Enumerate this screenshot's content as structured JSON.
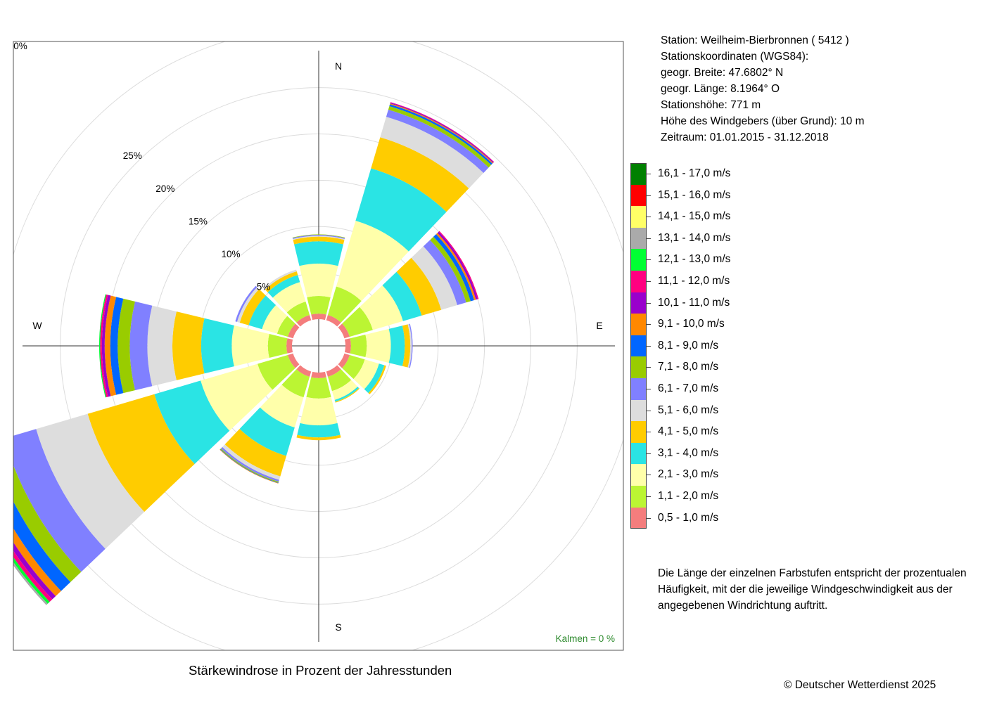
{
  "info": {
    "station": "Station:  Weilheim-Bierbronnen  ( 5412 )",
    "coords": "Stationskoordinaten (WGS84):",
    "lat": "geogr. Breite: 47.6802° N",
    "lon": "geogr. Länge:   8.1964° O",
    "height": "Stationshöhe: 771 m",
    "sensor": "Höhe des Windgebers (über Grund): 10 m",
    "period": "Zeitraum: 01.01.2015 - 31.12.2018"
  },
  "legend": [
    {
      "label": "16,1 - 17,0 m/s",
      "color": "#008000"
    },
    {
      "label": "15,1 - 16,0 m/s",
      "color": "#ff0000"
    },
    {
      "label": "14,1 - 15,0 m/s",
      "color": "#ffff66"
    },
    {
      "label": "13,1 - 14,0 m/s",
      "color": "#aaaaaa"
    },
    {
      "label": "12,1 - 13,0 m/s",
      "color": "#00ff33"
    },
    {
      "label": "11,1 - 12,0 m/s",
      "color": "#ff0080"
    },
    {
      "label": "10,1 - 11,0 m/s",
      "color": "#9900cc"
    },
    {
      "label": "9,1 - 10,0 m/s",
      "color": "#ff8800"
    },
    {
      "label": "8,1 - 9,0 m/s",
      "color": "#0066ff"
    },
    {
      "label": "7,1 - 8,0 m/s",
      "color": "#99cc00"
    },
    {
      "label": "6,1 - 7,0 m/s",
      "color": "#8080ff"
    },
    {
      "label": "5,1 - 6,0 m/s",
      "color": "#dddddd"
    },
    {
      "label": "4,1 - 5,0 m/s",
      "color": "#ffcc00"
    },
    {
      "label": "3,1 - 4,0 m/s",
      "color": "#2ae4e4"
    },
    {
      "label": "2,1 - 3,0 m/s",
      "color": "#ffffaa"
    },
    {
      "label": "1,1 - 2,0 m/s",
      "color": "#bbf533"
    },
    {
      "label": "0,5 - 1,0 m/s",
      "color": "#f47d7d"
    }
  ],
  "note": "Die Länge der einzelnen Farbstufen entspricht der prozentualen Häufigkeit, mit der die jeweilige Windgeschwindigkeit aus der angegebenen Windrichtung auftritt.",
  "title": "Stärkewindrose in Prozent der Jahresstunden",
  "copyright": "© Deutscher Wetterdienst  2025",
  "chart_data": {
    "type": "windrose",
    "unit": "%",
    "ring_labels": [
      "0%",
      "5%",
      "10%",
      "15%",
      "20%",
      "25%"
    ],
    "ring_values": [
      5,
      10,
      15,
      20,
      25
    ],
    "rmax": 31.5,
    "directions": [
      "N",
      "E",
      "S",
      "W"
    ],
    "calms": "Kalmen  =  0 %",
    "bins": [
      "0,5 - 1,0 m/s",
      "1,1 - 2,0 m/s",
      "2,1 - 3,0 m/s",
      "3,1 - 4,0 m/s",
      "4,1 - 5,0 m/s",
      "5,1 - 6,0 m/s",
      "6,1 - 7,0 m/s",
      "7,1 - 8,0 m/s",
      "8,1 - 9,0 m/s",
      "9,1 - 10,0 m/s",
      "10,1 - 11,0 m/s",
      "11,1 - 12,0 m/s",
      "12,1 - 13,0 m/s",
      "13,1 - 14,0 m/s",
      "14,1 - 15,0 m/s",
      "15,1 - 16,0 m/s",
      "16,1 - 17,0 m/s"
    ],
    "colors": [
      "#f47d7d",
      "#bbf533",
      "#ffffaa",
      "#2ae4e4",
      "#ffcc00",
      "#dddddd",
      "#8080ff",
      "#99cc00",
      "#0066ff",
      "#ff8800",
      "#9900cc",
      "#ff0080",
      "#00ff33",
      "#aaaaaa",
      "#ffff66",
      "#ff0000",
      "#008000"
    ],
    "sectors": [
      {
        "dir": 0,
        "values": [
          0.6,
          1.9,
          3.5,
          2.4,
          0.5,
          0.1,
          0.1,
          0.05
        ]
      },
      {
        "dir": 30,
        "values": [
          0.6,
          3.2,
          7.4,
          5.9,
          3.5,
          2.3,
          0.8,
          0.4,
          0.2,
          0.1,
          0.1,
          0.05
        ]
      },
      {
        "dir": 60,
        "values": [
          0.6,
          2.6,
          3.4,
          2.1,
          2.2,
          1.8,
          1.0,
          0.5,
          0.4,
          0.2,
          0.2,
          0.1
        ]
      },
      {
        "dir": 90,
        "values": [
          0.6,
          1.7,
          2.6,
          1.5,
          0.6,
          0.15,
          0.1
        ]
      },
      {
        "dir": 120,
        "values": [
          0.6,
          1.7,
          1.6,
          0.6,
          0.2
        ]
      },
      {
        "dir": 150,
        "values": [
          0.6,
          1.6,
          1.0,
          0.2,
          0.1
        ]
      },
      {
        "dir": 180,
        "values": [
          0.6,
          2.2,
          2.9,
          1.3,
          0.3
        ]
      },
      {
        "dir": 210,
        "values": [
          0.6,
          2.3,
          3.4,
          3.2,
          2.3,
          0.4,
          0.2,
          0.1,
          0.05,
          0.05
        ]
      },
      {
        "dir": 240,
        "values": [
          0.6,
          3.4,
          6.4,
          5.2,
          7.5,
          5.8,
          3.6,
          1.6,
          1.4,
          0.8,
          0.5,
          0.4,
          0.3,
          0.2
        ]
      },
      {
        "dir": 270,
        "values": [
          0.6,
          2.0,
          3.9,
          3.3,
          3.1,
          2.7,
          1.9,
          1.3,
          0.8,
          0.6,
          0.3,
          0.2,
          0.1
        ]
      },
      {
        "dir": 300,
        "values": [
          0.6,
          1.2,
          1.7,
          1.5,
          1.0,
          0.3,
          0.2
        ]
      },
      {
        "dir": 330,
        "values": [
          0.6,
          1.5,
          2.2,
          0.8,
          0.4,
          0.2
        ]
      }
    ]
  }
}
